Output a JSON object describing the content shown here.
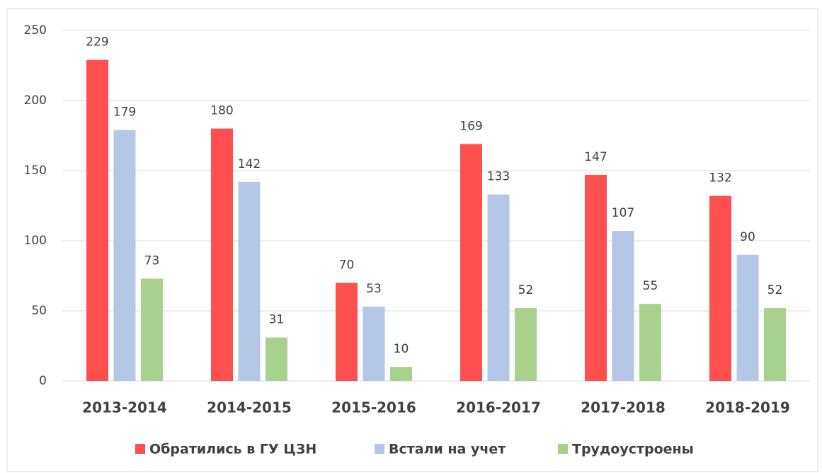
{
  "chart_data": {
    "type": "bar",
    "categories": [
      "2013-2014",
      "2014-2015",
      "2015-2016",
      "2016-2017",
      "2017-2018",
      "2018-2019"
    ],
    "series": [
      {
        "name": "Обратились в ГУ ЦЗН",
        "color": "#ff4f4f",
        "values": [
          229,
          180,
          70,
          169,
          147,
          132
        ]
      },
      {
        "name": "Встали на учет",
        "color": "#b4c7e7",
        "values": [
          179,
          142,
          53,
          133,
          107,
          90
        ]
      },
      {
        "name": "Трудоустроены",
        "color": "#a9d18e",
        "values": [
          73,
          31,
          10,
          52,
          55,
          52
        ]
      }
    ],
    "ylim": [
      0,
      250
    ],
    "yticks": [
      0,
      50,
      100,
      150,
      200,
      250
    ],
    "grid": true,
    "legend": "bottom"
  }
}
